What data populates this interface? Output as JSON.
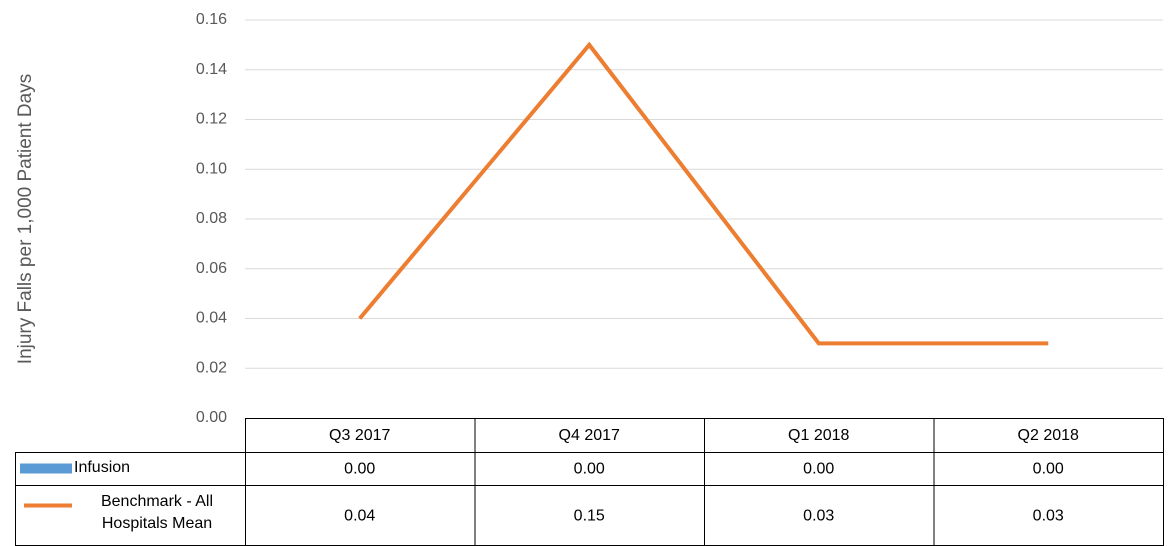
{
  "chart_data": {
    "type": "line",
    "y_label": "Injury Falls per 1,000 Patient Days",
    "categories": [
      "Q3 2017",
      "Q4 2017",
      "Q1 2018",
      "Q2 2018"
    ],
    "series": [
      {
        "name": "Infusion",
        "type": "bar",
        "color": "#5b9bd5",
        "values": [
          0,
          0,
          0,
          0
        ],
        "value_labels": [
          "0.00",
          "0.00",
          "0.00",
          "0.00"
        ]
      },
      {
        "name": "Benchmark - All Hospitals Mean",
        "type": "line",
        "color": "#ed7d31",
        "values": [
          0.04,
          0.15,
          0.03,
          0.03
        ]
      }
    ],
    "ylim": [
      0,
      0.16
    ],
    "yticks": [
      {
        "value": 0,
        "label": "0.00"
      },
      0.02,
      0.04,
      0.06,
      0.08,
      {
        "value": 0.1,
        "label": "0.10"
      },
      0.12,
      0.14,
      0.16
    ],
    "grid": true
  }
}
